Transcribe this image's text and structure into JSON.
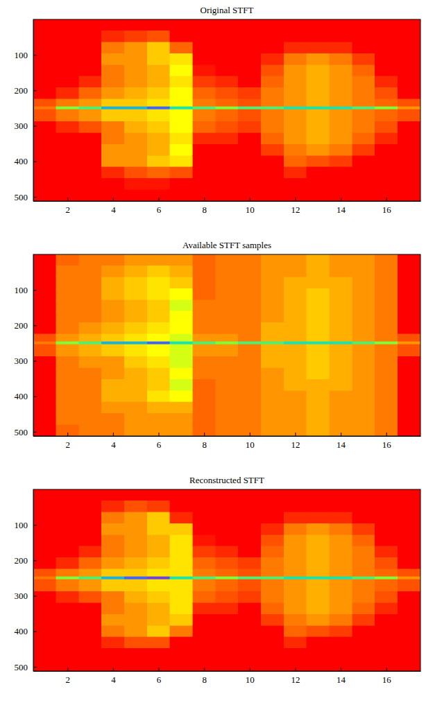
{
  "chart_data": [
    {
      "type": "heatmap",
      "title": "Original STFT",
      "x_edges": [
        0.5,
        1.5,
        2.5,
        3.5,
        4.5,
        5.5,
        6.5,
        7.5,
        8.5,
        9.5,
        10.5,
        11.5,
        12.5,
        13.5,
        14.5,
        15.5,
        16.5,
        17.5
      ],
      "y_edges": [
        0,
        32,
        64,
        96,
        128,
        160,
        192,
        224,
        246,
        254,
        288,
        320,
        352,
        384,
        416,
        448,
        480,
        512
      ],
      "xlim": [
        0.5,
        17.5
      ],
      "ylim": [
        0,
        512
      ],
      "xticks": [
        2,
        4,
        6,
        8,
        10,
        12,
        14,
        16
      ],
      "yticks": [
        100,
        200,
        300,
        400,
        500
      ],
      "color_range": [
        0,
        1
      ],
      "cells": [
        [
          0,
          0,
          0,
          0,
          0,
          0,
          0,
          0.2,
          0.3,
          0.2,
          0,
          0,
          0,
          0,
          0,
          0,
          0
        ],
        [
          0,
          0,
          0,
          0,
          0,
          0,
          0.1,
          0.3,
          0.7,
          0.3,
          0.1,
          0,
          0,
          0,
          0,
          0,
          0
        ],
        [
          0,
          0,
          0,
          0,
          0,
          0.1,
          0.25,
          0.35,
          0.75,
          0.35,
          0.2,
          0,
          0,
          0,
          0,
          0,
          0
        ],
        [
          0,
          0.1,
          0.3,
          0.35,
          0.3,
          0.3,
          0.35,
          0.45,
          0.85,
          0.45,
          0.3,
          0.3,
          0.35,
          0.35,
          0.1,
          0,
          0
        ],
        [
          0,
          0.15,
          0.35,
          0.35,
          0.35,
          0.35,
          0.4,
          0.45,
          0.85,
          0.45,
          0.4,
          0.35,
          0.35,
          0.35,
          0.2,
          0.05,
          0
        ],
        [
          0,
          0.2,
          0.45,
          0.45,
          0.4,
          0.4,
          0.45,
          0.5,
          0.9,
          0.5,
          0.45,
          0.4,
          0.4,
          0.45,
          0.25,
          0.05,
          0
        ],
        [
          0,
          0,
          0.25,
          0.5,
          0.55,
          0.5,
          0.55,
          0.55,
          0.8,
          0.55,
          0.55,
          0.5,
          0.55,
          0.5,
          0.2,
          0,
          0
        ],
        [
          0,
          0,
          0,
          0,
          0.05,
          0.15,
          0.25,
          0.3,
          0.75,
          0.3,
          0.25,
          0.1,
          0,
          0,
          0,
          0,
          0
        ],
        [
          0,
          0,
          0,
          0,
          0,
          0.1,
          0.2,
          0.25,
          0.7,
          0.25,
          0.2,
          0.1,
          0,
          0,
          0,
          0,
          0
        ],
        [
          0,
          0,
          0,
          0,
          0,
          0,
          0.15,
          0.2,
          0.75,
          0.2,
          0.15,
          0,
          0,
          0,
          0,
          0,
          0
        ],
        [
          0,
          0,
          0,
          0.1,
          0.2,
          0.25,
          0.3,
          0.3,
          0.75,
          0.3,
          0.3,
          0.25,
          0.15,
          0,
          0,
          0,
          0
        ],
        [
          0,
          0,
          0.1,
          0.3,
          0.35,
          0.35,
          0.35,
          0.35,
          0.8,
          0.35,
          0.35,
          0.35,
          0.3,
          0.25,
          0.1,
          0,
          0
        ],
        [
          0,
          0,
          0.1,
          0.35,
          0.4,
          0.4,
          0.4,
          0.4,
          0.8,
          0.4,
          0.4,
          0.4,
          0.35,
          0.2,
          0,
          0,
          0
        ],
        [
          0,
          0,
          0.1,
          0.3,
          0.35,
          0.35,
          0.35,
          0.35,
          0.8,
          0.35,
          0.35,
          0.35,
          0.3,
          0.15,
          0,
          0,
          0
        ],
        [
          0,
          0,
          0,
          0.15,
          0.25,
          0.3,
          0.3,
          0.3,
          0.75,
          0.3,
          0.3,
          0.25,
          0.15,
          0,
          0,
          0,
          0
        ],
        [
          0,
          0,
          0,
          0,
          0,
          0.1,
          0.2,
          0.25,
          0.7,
          0.25,
          0.2,
          0.1,
          0,
          0,
          0,
          0,
          0
        ],
        [
          0,
          0,
          0,
          0,
          0,
          0,
          0,
          0.2,
          0.35,
          0.2,
          0,
          0,
          0,
          0,
          0,
          0,
          0
        ]
      ]
    },
    {
      "type": "heatmap",
      "title": "Available STFT samples",
      "x_edges": [
        0.5,
        1.5,
        2.5,
        3.5,
        4.5,
        5.5,
        6.5,
        7.5,
        8.5,
        9.5,
        10.5,
        11.5,
        12.5,
        13.5,
        14.5,
        15.5,
        16.5,
        17.5
      ],
      "y_edges": [
        0,
        32,
        64,
        96,
        128,
        160,
        192,
        224,
        246,
        254,
        288,
        320,
        352,
        384,
        416,
        448,
        480,
        512
      ],
      "xlim": [
        0.5,
        17.5
      ],
      "ylim": [
        0,
        512
      ],
      "xticks": [
        2,
        4,
        6,
        8,
        10,
        12,
        14,
        16
      ],
      "yticks": [
        100,
        200,
        300,
        400,
        500
      ],
      "color_range": [
        0,
        1
      ],
      "cells": [
        [
          0,
          0,
          0,
          0,
          0,
          0,
          0,
          0.2,
          0.3,
          0.2,
          0,
          0,
          0,
          0,
          0,
          0,
          0
        ],
        [
          0.25,
          0.3,
          0.3,
          0.3,
          0.3,
          0.3,
          0.3,
          0.35,
          0.7,
          0.35,
          0.3,
          0.3,
          0.3,
          0.3,
          0.3,
          0.3,
          0.25
        ],
        [
          0.3,
          0.3,
          0.3,
          0.3,
          0.3,
          0.3,
          0.35,
          0.4,
          0.75,
          0.4,
          0.35,
          0.3,
          0.3,
          0.3,
          0.3,
          0.3,
          0.3
        ],
        [
          0.3,
          0.35,
          0.4,
          0.4,
          0.35,
          0.35,
          0.4,
          0.45,
          0.85,
          0.45,
          0.35,
          0.35,
          0.4,
          0.4,
          0.35,
          0.3,
          0.3
        ],
        [
          0.35,
          0.4,
          0.45,
          0.45,
          0.4,
          0.4,
          0.45,
          0.5,
          0.85,
          0.5,
          0.45,
          0.4,
          0.4,
          0.4,
          0.35,
          0.35,
          0.35
        ],
        [
          0.35,
          0.45,
          0.5,
          0.5,
          0.45,
          0.45,
          0.5,
          0.55,
          0.9,
          0.55,
          0.5,
          0.45,
          0.45,
          0.5,
          0.4,
          0.35,
          0.35
        ],
        [
          0.35,
          0.4,
          0.45,
          0.55,
          0.6,
          0.55,
          0.55,
          0.6,
          0.8,
          0.6,
          0.6,
          0.55,
          0.6,
          0.55,
          0.4,
          0.35,
          0.35
        ],
        [
          0.25,
          0.25,
          0.25,
          0.25,
          0.3,
          0.3,
          0.3,
          0.35,
          0.75,
          0.35,
          0.3,
          0.3,
          0.25,
          0.25,
          0.25,
          0.25,
          0.25
        ],
        [
          0.3,
          0.3,
          0.3,
          0.3,
          0.3,
          0.3,
          0.3,
          0.35,
          0.7,
          0.35,
          0.3,
          0.3,
          0.3,
          0.3,
          0.3,
          0.3,
          0.3
        ],
        [
          0.3,
          0.3,
          0.3,
          0.3,
          0.3,
          0.3,
          0.3,
          0.3,
          0.75,
          0.3,
          0.3,
          0.3,
          0.3,
          0.3,
          0.3,
          0.3,
          0.3
        ],
        [
          0.35,
          0.35,
          0.35,
          0.35,
          0.35,
          0.35,
          0.4,
          0.4,
          0.75,
          0.4,
          0.4,
          0.35,
          0.35,
          0.35,
          0.35,
          0.35,
          0.35
        ],
        [
          0.35,
          0.35,
          0.4,
          0.4,
          0.4,
          0.4,
          0.4,
          0.4,
          0.8,
          0.4,
          0.4,
          0.4,
          0.4,
          0.35,
          0.35,
          0.35,
          0.35
        ],
        [
          0.4,
          0.4,
          0.4,
          0.45,
          0.45,
          0.45,
          0.45,
          0.45,
          0.8,
          0.45,
          0.45,
          0.45,
          0.4,
          0.4,
          0.4,
          0.4,
          0.4
        ],
        [
          0.35,
          0.35,
          0.4,
          0.4,
          0.4,
          0.4,
          0.4,
          0.4,
          0.8,
          0.4,
          0.4,
          0.4,
          0.4,
          0.35,
          0.35,
          0.35,
          0.35
        ],
        [
          0.35,
          0.35,
          0.35,
          0.35,
          0.35,
          0.35,
          0.35,
          0.35,
          0.75,
          0.35,
          0.35,
          0.35,
          0.35,
          0.35,
          0.35,
          0.35,
          0.35
        ],
        [
          0.3,
          0.3,
          0.3,
          0.3,
          0.3,
          0.3,
          0.3,
          0.3,
          0.7,
          0.3,
          0.3,
          0.3,
          0.3,
          0.3,
          0.3,
          0.3,
          0.3
        ],
        [
          0,
          0,
          0,
          0,
          0,
          0,
          0,
          0.2,
          0.35,
          0.2,
          0,
          0,
          0,
          0,
          0,
          0,
          0
        ]
      ]
    },
    {
      "type": "heatmap",
      "title": "Reconstructed STFT",
      "x_edges": [
        0.5,
        1.5,
        2.5,
        3.5,
        4.5,
        5.5,
        6.5,
        7.5,
        8.5,
        9.5,
        10.5,
        11.5,
        12.5,
        13.5,
        14.5,
        15.5,
        16.5,
        17.5
      ],
      "y_edges": [
        0,
        32,
        64,
        96,
        128,
        160,
        192,
        224,
        246,
        254,
        288,
        320,
        352,
        384,
        416,
        448,
        480,
        512
      ],
      "xlim": [
        0.5,
        17.5
      ],
      "ylim": [
        0,
        512
      ],
      "xticks": [
        2,
        4,
        6,
        8,
        10,
        12,
        14,
        16
      ],
      "yticks": [
        100,
        200,
        300,
        400,
        500
      ],
      "color_range": [
        0,
        1
      ],
      "cells": [
        [
          0,
          0,
          0,
          0,
          0,
          0,
          0,
          0.2,
          0.3,
          0.2,
          0,
          0,
          0,
          0,
          0,
          0,
          0
        ],
        [
          0,
          0,
          0,
          0,
          0,
          0,
          0.1,
          0.3,
          0.7,
          0.3,
          0.1,
          0,
          0,
          0,
          0,
          0,
          0
        ],
        [
          0,
          0,
          0,
          0,
          0,
          0.1,
          0.25,
          0.35,
          0.75,
          0.35,
          0.2,
          0,
          0,
          0,
          0,
          0,
          0
        ],
        [
          0,
          0.1,
          0.3,
          0.35,
          0.3,
          0.3,
          0.35,
          0.45,
          0.85,
          0.45,
          0.3,
          0.3,
          0.35,
          0.3,
          0.1,
          0,
          0
        ],
        [
          0,
          0.2,
          0.35,
          0.35,
          0.35,
          0.35,
          0.4,
          0.45,
          0.9,
          0.45,
          0.4,
          0.35,
          0.35,
          0.35,
          0.2,
          0,
          0
        ],
        [
          0,
          0.15,
          0.45,
          0.45,
          0.4,
          0.4,
          0.45,
          0.5,
          0.95,
          0.5,
          0.45,
          0.4,
          0.4,
          0.45,
          0.2,
          0,
          0
        ],
        [
          0,
          0,
          0.1,
          0.45,
          0.5,
          0.5,
          0.5,
          0.5,
          0.8,
          0.5,
          0.5,
          0.5,
          0.45,
          0.3,
          0,
          0,
          0
        ],
        [
          0,
          0,
          0,
          0,
          0.05,
          0.15,
          0.25,
          0.3,
          0.75,
          0.3,
          0.25,
          0.1,
          0,
          0,
          0,
          0,
          0
        ],
        [
          0,
          0,
          0,
          0,
          0,
          0.1,
          0.2,
          0.25,
          0.7,
          0.25,
          0.2,
          0.1,
          0,
          0,
          0,
          0,
          0
        ],
        [
          0,
          0,
          0,
          0,
          0,
          0,
          0.15,
          0.2,
          0.75,
          0.2,
          0.15,
          0,
          0,
          0,
          0,
          0,
          0
        ],
        [
          0,
          0,
          0,
          0.1,
          0.2,
          0.25,
          0.3,
          0.3,
          0.75,
          0.3,
          0.3,
          0.25,
          0.15,
          0,
          0,
          0,
          0
        ],
        [
          0,
          0,
          0.1,
          0.3,
          0.35,
          0.35,
          0.35,
          0.35,
          0.8,
          0.35,
          0.35,
          0.35,
          0.3,
          0.25,
          0.1,
          0,
          0
        ],
        [
          0,
          0,
          0.1,
          0.35,
          0.4,
          0.4,
          0.4,
          0.4,
          0.8,
          0.4,
          0.4,
          0.4,
          0.35,
          0.2,
          0,
          0,
          0
        ],
        [
          0,
          0,
          0.1,
          0.3,
          0.35,
          0.35,
          0.35,
          0.35,
          0.8,
          0.35,
          0.35,
          0.35,
          0.3,
          0.15,
          0,
          0,
          0
        ],
        [
          0,
          0,
          0,
          0.15,
          0.25,
          0.3,
          0.3,
          0.3,
          0.75,
          0.3,
          0.3,
          0.25,
          0.15,
          0,
          0,
          0,
          0
        ],
        [
          0,
          0,
          0,
          0,
          0,
          0.1,
          0.2,
          0.25,
          0.7,
          0.25,
          0.2,
          0.1,
          0,
          0,
          0,
          0,
          0
        ],
        [
          0,
          0,
          0,
          0,
          0,
          0,
          0,
          0.2,
          0.35,
          0.2,
          0,
          0,
          0,
          0,
          0,
          0,
          0
        ]
      ]
    }
  ]
}
